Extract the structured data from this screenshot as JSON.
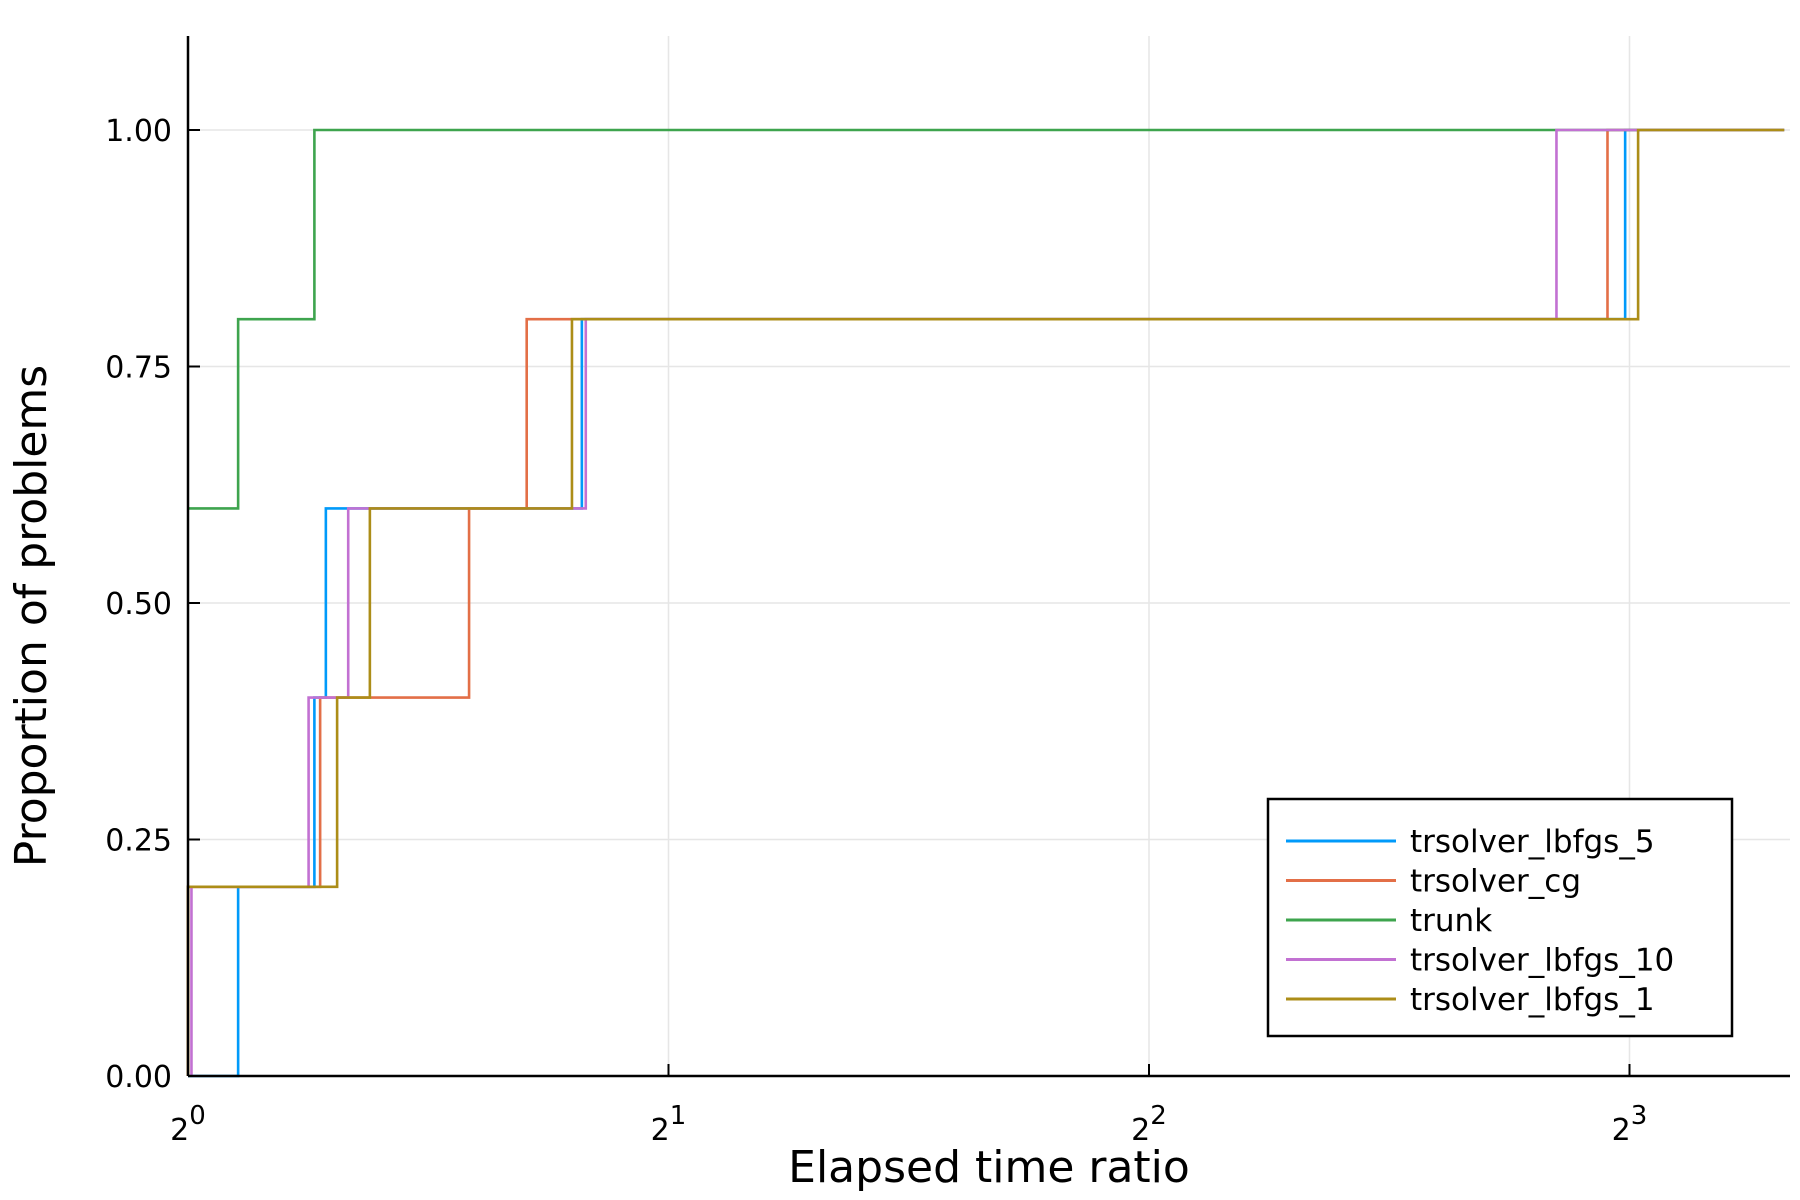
{
  "chart_data": {
    "type": "line",
    "step": true,
    "xlabel": "Elapsed time ratio",
    "ylabel": "Proportion of problems",
    "x_scale": "log2",
    "xlim": [
      1,
      10
    ],
    "ylim": [
      0,
      1.1
    ],
    "x_ticks": [
      {
        "value": 1,
        "base": "2",
        "exp": "0"
      },
      {
        "value": 2,
        "base": "2",
        "exp": "1"
      },
      {
        "value": 4,
        "base": "2",
        "exp": "2"
      },
      {
        "value": 8,
        "base": "2",
        "exp": "3"
      }
    ],
    "y_ticks": [
      {
        "value": 0,
        "label": "0.00"
      },
      {
        "value": 0.25,
        "label": "0.25"
      },
      {
        "value": 0.5,
        "label": "0.50"
      },
      {
        "value": 0.75,
        "label": "0.75"
      },
      {
        "value": 1,
        "label": "1.00"
      }
    ],
    "grid": true,
    "legend_position": "bottom-right",
    "series": [
      {
        "name": "trsolver_lbfgs_5",
        "color": "#009AFA",
        "x": [
          1.0,
          1.075,
          1.075,
          1.2,
          1.2,
          1.22,
          1.22,
          1.765,
          1.765,
          7.95,
          7.95,
          10
        ],
        "y": [
          0.0,
          0.0,
          0.2,
          0.2,
          0.4,
          0.4,
          0.6,
          0.6,
          0.8,
          0.8,
          1.0,
          1.0
        ]
      },
      {
        "name": "trsolver_cg",
        "color": "#E36F47",
        "x": [
          1.0,
          1.0,
          1.21,
          1.21,
          1.5,
          1.5,
          1.63,
          1.63,
          7.75,
          7.75,
          10
        ],
        "y": [
          0.0,
          0.2,
          0.2,
          0.4,
          0.4,
          0.6,
          0.6,
          0.8,
          0.8,
          1.0,
          1.0
        ]
      },
      {
        "name": "trunk",
        "color": "#3EA44E",
        "x": [
          1.0,
          1.075,
          1.075,
          1.2,
          1.2,
          10
        ],
        "y": [
          0.6,
          0.6,
          0.8,
          0.8,
          1.0,
          1.0
        ]
      },
      {
        "name": "trsolver_lbfgs_10",
        "color": "#C271D2",
        "x": [
          1.005,
          1.005,
          1.19,
          1.19,
          1.26,
          1.26,
          1.775,
          1.775,
          7.2,
          7.2,
          10
        ],
        "y": [
          0.0,
          0.2,
          0.2,
          0.4,
          0.4,
          0.6,
          0.6,
          0.8,
          0.8,
          1.0,
          1.0
        ]
      },
      {
        "name": "trsolver_lbfgs_1",
        "color": "#AC8D18",
        "x": [
          1.0,
          1.0,
          1.24,
          1.24,
          1.3,
          1.3,
          1.74,
          1.74,
          8.1,
          8.1,
          10
        ],
        "y": [
          0.0,
          0.2,
          0.2,
          0.4,
          0.4,
          0.6,
          0.6,
          0.8,
          0.8,
          1.0,
          1.0
        ]
      }
    ]
  }
}
